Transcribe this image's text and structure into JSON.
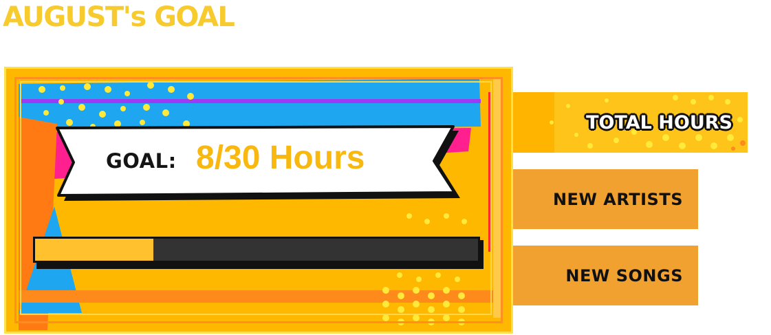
{
  "header": {
    "title": "AUGUST's GOAL"
  },
  "goal_card": {
    "label": "GOAL:",
    "value_text": "8/30 Hours",
    "current_hours": 8,
    "target_hours": 30,
    "progress_fraction": 0.267
  },
  "side_menu": {
    "items": [
      {
        "label": "TOTAL HOURS",
        "active": true
      },
      {
        "label": "NEW ARTISTS",
        "active": false
      },
      {
        "label": "NEW SONGS",
        "active": false
      }
    ]
  },
  "colors": {
    "title": "#f7cb2d",
    "card_base": "#ffb800",
    "banner_value": "#f8b80f",
    "progress_fill": "#ffc22e",
    "progress_track": "#333333",
    "menu_active": "#ffb400",
    "menu_inactive": "#f0a12f"
  }
}
